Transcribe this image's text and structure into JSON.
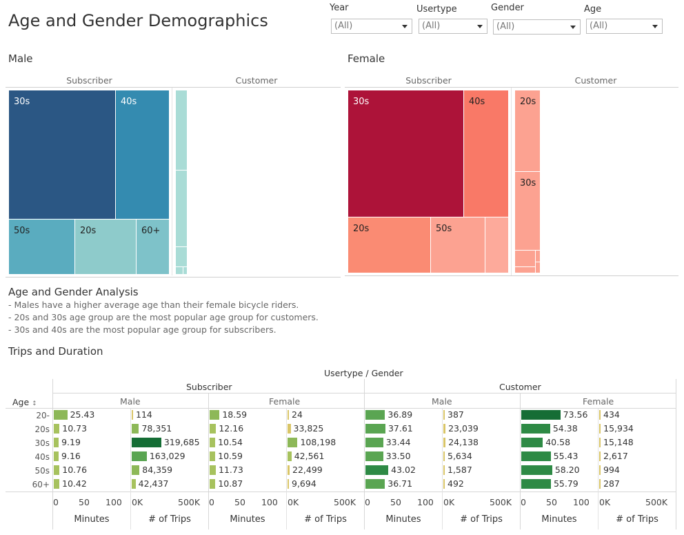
{
  "dashboard": {
    "title": "Age and Gender Demographics"
  },
  "filters": [
    {
      "label": "Year",
      "value": "(All)"
    },
    {
      "label": "Usertype",
      "value": "(All)"
    },
    {
      "label": "Gender",
      "value": "(All)"
    },
    {
      "label": "Age",
      "value": "(All)"
    }
  ],
  "treemaps": {
    "male": {
      "title": "Male",
      "subscriber_label": "Subscriber",
      "customer_label": "Customer",
      "subscriber_tiles": [
        {
          "label": "30s",
          "color": "#2b5784"
        },
        {
          "label": "40s",
          "color": "#348bb0"
        },
        {
          "label": "50s",
          "color": "#5aacbf"
        },
        {
          "label": "20s",
          "color": "#8ecbcb"
        },
        {
          "label": "60+",
          "color": "#7ec2c9"
        }
      ],
      "customer_color": "#a9dcd6"
    },
    "female": {
      "title": "Female",
      "subscriber_label": "Subscriber",
      "customer_label": "Customer",
      "subscriber_tiles": [
        {
          "label": "30s",
          "color": "#ad1339"
        },
        {
          "label": "40s",
          "color": "#f97967"
        },
        {
          "label": "20s",
          "color": "#fa8b73"
        },
        {
          "label": "50s",
          "color": "#fca291"
        },
        {
          "label": "",
          "color": "#fdaa9b"
        }
      ],
      "customer_tiles": [
        {
          "label": "20s",
          "color": "#fca291"
        },
        {
          "label": "30s",
          "color": "#fca291"
        }
      ]
    }
  },
  "analysis": {
    "title": "Age and Gender Analysis",
    "lines": [
      "-  Males have a higher average age than their female bicycle riders.",
      "-  20s and 30s age group  are the most popular age group for customers.",
      "-  30s and 40s are the most popular age group for subscribers."
    ]
  },
  "trips": {
    "title": "Trips and Duration",
    "group_header": "Usertype  /  Gender",
    "row_header": "Age",
    "usertypes": [
      "Subscriber",
      "Customer"
    ],
    "genders": [
      "Male",
      "Female"
    ],
    "ages": [
      "20-",
      "20s",
      "30s",
      "40s",
      "50s",
      "60+"
    ],
    "minutes_ticks": [
      "0",
      "50",
      "100"
    ],
    "trips_ticks": [
      "0K",
      "500K"
    ],
    "minutes_label": "Minutes",
    "trips_label": "# of Trips",
    "panels": [
      {
        "minutes": [
          "25.43",
          "10.73",
          "9.19",
          "9.16",
          "10.76",
          "10.42"
        ],
        "trips": [
          "114",
          "78,351",
          "319,685",
          "163,029",
          "84,359",
          "42,437"
        ]
      },
      {
        "minutes": [
          "18.59",
          "12.16",
          "10.54",
          "10.59",
          "11.73",
          "10.87"
        ],
        "trips": [
          "24",
          "33,825",
          "108,198",
          "42,561",
          "22,499",
          "9,694"
        ]
      },
      {
        "minutes": [
          "36.89",
          "37.61",
          "33.44",
          "33.50",
          "43.02",
          "36.71"
        ],
        "trips": [
          "387",
          "23,039",
          "24,138",
          "5,634",
          "1,587",
          "492"
        ]
      },
      {
        "minutes": [
          "73.56",
          "54.38",
          "40.58",
          "55.43",
          "58.20",
          "55.79"
        ],
        "trips": [
          "434",
          "15,934",
          "15,148",
          "2,617",
          "994",
          "287"
        ]
      }
    ],
    "colors": {
      "low": "#d9c567",
      "mid": "#8db858",
      "high": "#156d35"
    }
  }
}
